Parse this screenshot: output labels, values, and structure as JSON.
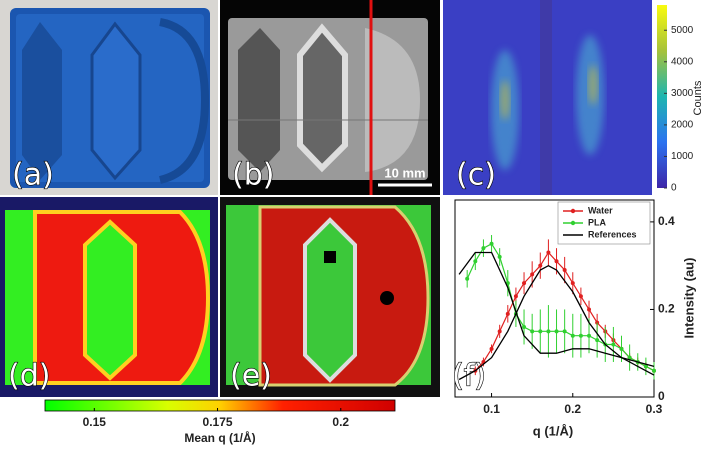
{
  "panel_labels": [
    "(a)",
    "(b)",
    "(c)",
    "(d)",
    "(e)",
    "(f)"
  ],
  "scale_bar": "10 mm",
  "counts_colorbar": {
    "label": "Counts",
    "clim": [
      0,
      5800
    ],
    "ticks": [
      0,
      1000,
      2000,
      3000,
      4000,
      5000
    ]
  },
  "q_colorbar": {
    "label": "Mean q  (1/Å)",
    "clim": [
      0.14,
      0.211
    ],
    "ticks": [
      0.15,
      0.175,
      0.2
    ]
  },
  "chart_data": {
    "type": "line",
    "x_label": "q  (1/Å)",
    "y_label": "Intensity  (au)",
    "xlim": [
      0.055,
      0.3
    ],
    "ylim": [
      0,
      0.45
    ],
    "xticks": [
      0.1,
      0.2,
      0.3
    ],
    "yticks": [
      0,
      0.2,
      0.4
    ],
    "legend": "upper right",
    "series": [
      {
        "name": "Water",
        "color": "#e02020",
        "x": [
          0.08,
          0.09,
          0.1,
          0.11,
          0.12,
          0.13,
          0.14,
          0.15,
          0.16,
          0.17,
          0.18,
          0.19,
          0.2,
          0.21,
          0.22,
          0.23,
          0.24,
          0.25,
          0.26,
          0.27,
          0.28,
          0.29,
          0.3
        ],
        "values": [
          0.06,
          0.08,
          0.11,
          0.15,
          0.19,
          0.23,
          0.26,
          0.28,
          0.3,
          0.33,
          0.31,
          0.29,
          0.26,
          0.23,
          0.2,
          0.17,
          0.15,
          0.13,
          0.11,
          0.09,
          0.08,
          0.07,
          0.06
        ],
        "errors": [
          0.01,
          0.01,
          0.01,
          0.015,
          0.02,
          0.02,
          0.025,
          0.03,
          0.03,
          0.03,
          0.03,
          0.03,
          0.025,
          0.02,
          0.02,
          0.02,
          0.015,
          0.015,
          0.01,
          0.01,
          0.01,
          0.01,
          0.01
        ]
      },
      {
        "name": "PLA",
        "color": "#30d030",
        "x": [
          0.07,
          0.08,
          0.09,
          0.1,
          0.11,
          0.12,
          0.13,
          0.14,
          0.15,
          0.16,
          0.17,
          0.18,
          0.19,
          0.2,
          0.21,
          0.22,
          0.23,
          0.24,
          0.25,
          0.26,
          0.27,
          0.28,
          0.29,
          0.3
        ],
        "values": [
          0.27,
          0.31,
          0.34,
          0.35,
          0.32,
          0.26,
          0.19,
          0.16,
          0.15,
          0.15,
          0.15,
          0.15,
          0.15,
          0.14,
          0.14,
          0.14,
          0.13,
          0.12,
          0.12,
          0.11,
          0.09,
          0.08,
          0.07,
          0.06
        ],
        "errors": [
          0.02,
          0.02,
          0.02,
          0.02,
          0.02,
          0.03,
          0.03,
          0.04,
          0.04,
          0.05,
          0.06,
          0.05,
          0.05,
          0.05,
          0.05,
          0.04,
          0.04,
          0.04,
          0.04,
          0.03,
          0.03,
          0.02,
          0.02,
          0.02
        ]
      },
      {
        "name": "References",
        "color": "#000000",
        "curves": [
          {
            "x": [
              0.06,
              0.08,
              0.1,
              0.12,
              0.14,
              0.16,
              0.18,
              0.2,
              0.22,
              0.24,
              0.26,
              0.28,
              0.3
            ],
            "values": [
              0.28,
              0.33,
              0.33,
              0.25,
              0.14,
              0.1,
              0.1,
              0.11,
              0.11,
              0.1,
              0.09,
              0.08,
              0.07
            ]
          },
          {
            "x": [
              0.06,
              0.08,
              0.1,
              0.12,
              0.14,
              0.16,
              0.17,
              0.18,
              0.2,
              0.22,
              0.24,
              0.26,
              0.28,
              0.3
            ],
            "values": [
              0.04,
              0.06,
              0.09,
              0.15,
              0.23,
              0.29,
              0.3,
              0.29,
              0.24,
              0.17,
              0.12,
              0.09,
              0.07,
              0.05
            ]
          }
        ]
      }
    ]
  }
}
